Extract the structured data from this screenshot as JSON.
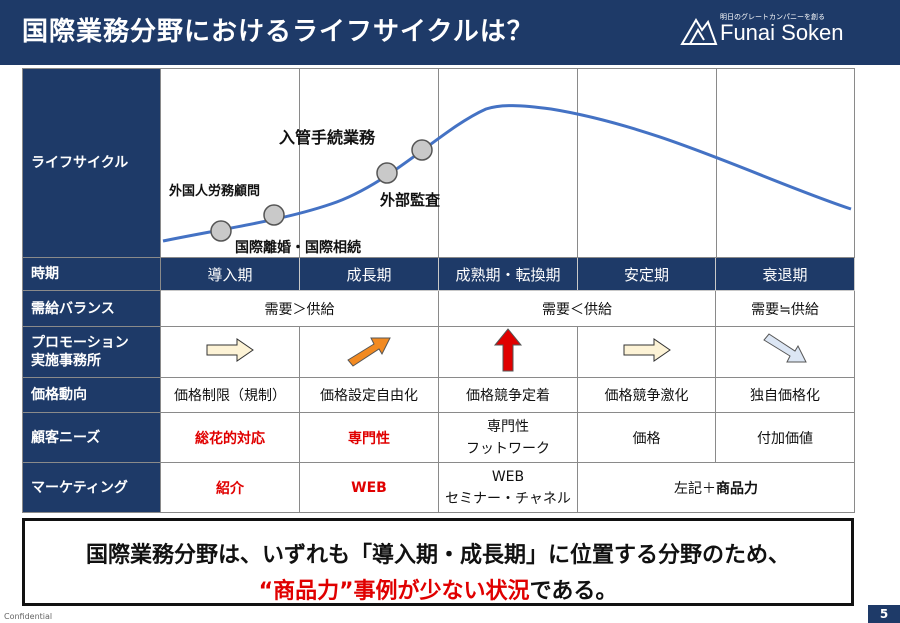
{
  "header": {
    "title": "国際業務分野におけるライフサイクルは？"
  },
  "logo": {
    "tagline": "明日のグレートカンパニーを創る",
    "name": "Funai Soken"
  },
  "colors": {
    "navy": "#1e3a68",
    "red": "#e00000",
    "curve": "#4472c4"
  },
  "table": {
    "lifecycle": {
      "label": "ライフサイクル",
      "annotations": {
        "a1": "外国人労務顧問",
        "a2": "国際離婚・国際相続",
        "a3": "外部監査",
        "a4": "入管手続業務"
      }
    },
    "phase": {
      "label": "時期",
      "cells": [
        "導入期",
        "成長期",
        "成熟期・転換期",
        "安定期",
        "衰退期"
      ]
    },
    "supply": {
      "label": "需給バランス",
      "c1": "需要＞供給",
      "c2": "需要＜供給",
      "c3": "需要≒供給"
    },
    "promotion": {
      "label1": "プロモーション",
      "label2": "実施事務所",
      "arrows": [
        "arrow-right-cream",
        "arrow-up-right-orange",
        "arrow-up-red",
        "arrow-right-cream",
        "arrow-down-right-lightblue"
      ]
    },
    "price": {
      "label": "価格動向",
      "cells": [
        "価格制限（規制）",
        "価格設定自由化",
        "価格競争定着",
        "価格競争激化",
        "独自価格化"
      ]
    },
    "needs": {
      "label": "顧客ニーズ",
      "c1": "総花的対応",
      "c2": "専門性",
      "c3a": "専門性",
      "c3b": "フットワーク",
      "c4": "価格",
      "c5": "付加価値"
    },
    "marketing": {
      "label": "マーケティング",
      "c1": "紹介",
      "c2": "WEB",
      "c3a": "WEB",
      "c3b": "セミナー・チャネル",
      "c4a": "左記＋",
      "c4b": "商品力"
    }
  },
  "summary": {
    "line1": "国際業務分野は、いずれも「導入期・成長期」に位置する分野のため、",
    "line2_red": "“商品力”事例が少ない状況",
    "line2_rest": "である。"
  },
  "footer": {
    "confidential": "Confidential",
    "page": "5"
  }
}
